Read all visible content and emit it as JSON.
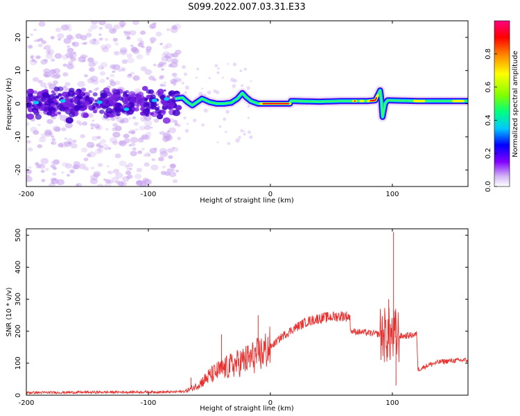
{
  "title": "S099.2022.007.03.31.E33",
  "colors": {
    "snr_line": "#e8302e",
    "signal_low": "#c9a6ef",
    "signal_mid": "#7a1fe0",
    "signal_high": "#3f00c8"
  },
  "chart_data": [
    {
      "type": "heatmap",
      "name": "spectrogram",
      "xlabel": "Height of straight line (km)",
      "ylabel": "Frequency (Hz)",
      "xlim": [
        -200,
        162
      ],
      "ylim": [
        -25,
        25
      ],
      "xticks": [
        -200,
        -100,
        0,
        100
      ],
      "yticks": [
        -20,
        -10,
        0,
        10,
        20
      ],
      "colorbar": {
        "label": "Normalized spectral amplitude",
        "ticks": [
          0.0,
          0.2,
          0.4,
          0.6,
          0.8
        ],
        "range": [
          0,
          1
        ],
        "colormap": [
          "#ffffff",
          "#d4b8f5",
          "#8000ff",
          "#0000ff",
          "#00c8ff",
          "#00ff80",
          "#80ff00",
          "#ffff00",
          "#ff8000",
          "#ff0000",
          "#ff0080"
        ]
      },
      "ridge": [
        {
          "x": -78,
          "y": 1.5
        },
        {
          "x": -72,
          "y": 1.8
        },
        {
          "x": -68,
          "y": 0.5
        },
        {
          "x": -64,
          "y": -0.5
        },
        {
          "x": -60,
          "y": 0.5
        },
        {
          "x": -56,
          "y": 1.5
        },
        {
          "x": -50,
          "y": 0.5
        },
        {
          "x": -44,
          "y": 0.0
        },
        {
          "x": -38,
          "y": 0.0
        },
        {
          "x": -32,
          "y": 0.3
        },
        {
          "x": -27,
          "y": 1.5
        },
        {
          "x": -23,
          "y": 3.2
        },
        {
          "x": -20,
          "y": 2.0
        },
        {
          "x": -16,
          "y": 0.8
        },
        {
          "x": -10,
          "y": 0.0
        },
        {
          "x": -4,
          "y": 0.0
        },
        {
          "x": 0,
          "y": 0.0
        },
        {
          "x": 16,
          "y": 0.0
        },
        {
          "x": 17,
          "y": 0.8
        },
        {
          "x": 40,
          "y": 0.6
        },
        {
          "x": 60,
          "y": 0.8
        },
        {
          "x": 80,
          "y": 0.8
        },
        {
          "x": 86,
          "y": 1.0
        },
        {
          "x": 88,
          "y": 2.5
        },
        {
          "x": 90,
          "y": 4.0
        },
        {
          "x": 91,
          "y": 1.0
        },
        {
          "x": 92,
          "y": -4.0
        },
        {
          "x": 94,
          "y": 0.0
        },
        {
          "x": 96,
          "y": 1.0
        },
        {
          "x": 120,
          "y": 0.8
        },
        {
          "x": 140,
          "y": 0.8
        },
        {
          "x": 162,
          "y": 0.8
        }
      ]
    },
    {
      "type": "line",
      "name": "snr",
      "xlabel": "Height of straight line (km)",
      "ylabel": "SNR (10 * v/v)",
      "xlim": [
        -200,
        162
      ],
      "ylim": [
        0,
        520
      ],
      "xticks": [
        -200,
        -100,
        0,
        100
      ],
      "yticks": [
        0,
        100,
        200,
        300,
        400,
        500
      ],
      "envelope": [
        {
          "x": -200,
          "y": 8
        },
        {
          "x": -150,
          "y": 9
        },
        {
          "x": -100,
          "y": 10
        },
        {
          "x": -80,
          "y": 10
        },
        {
          "x": -70,
          "y": 12
        },
        {
          "x": -65,
          "y": 20
        },
        {
          "x": -60,
          "y": 30
        },
        {
          "x": -50,
          "y": 60
        },
        {
          "x": -40,
          "y": 80
        },
        {
          "x": -30,
          "y": 95
        },
        {
          "x": -20,
          "y": 110
        },
        {
          "x": -10,
          "y": 125
        },
        {
          "x": 0,
          "y": 150
        },
        {
          "x": 10,
          "y": 185
        },
        {
          "x": 20,
          "y": 210
        },
        {
          "x": 30,
          "y": 230
        },
        {
          "x": 40,
          "y": 240
        },
        {
          "x": 50,
          "y": 245
        },
        {
          "x": 60,
          "y": 248
        },
        {
          "x": 65,
          "y": 245
        },
        {
          "x": 66,
          "y": 200
        },
        {
          "x": 80,
          "y": 195
        },
        {
          "x": 90,
          "y": 190
        },
        {
          "x": 100,
          "y": 185
        },
        {
          "x": 110,
          "y": 185
        },
        {
          "x": 120,
          "y": 190
        },
        {
          "x": 121,
          "y": 80
        },
        {
          "x": 130,
          "y": 95
        },
        {
          "x": 140,
          "y": 105
        },
        {
          "x": 150,
          "y": 108
        },
        {
          "x": 162,
          "y": 110
        }
      ],
      "spikes": [
        {
          "x": -65,
          "y": 55
        },
        {
          "x": -40,
          "y": 190
        },
        {
          "x": -10,
          "y": 250
        },
        {
          "x": 97,
          "y": 300
        },
        {
          "x": 101,
          "y": 510
        },
        {
          "x": 103,
          "y": 30
        }
      ]
    }
  ]
}
